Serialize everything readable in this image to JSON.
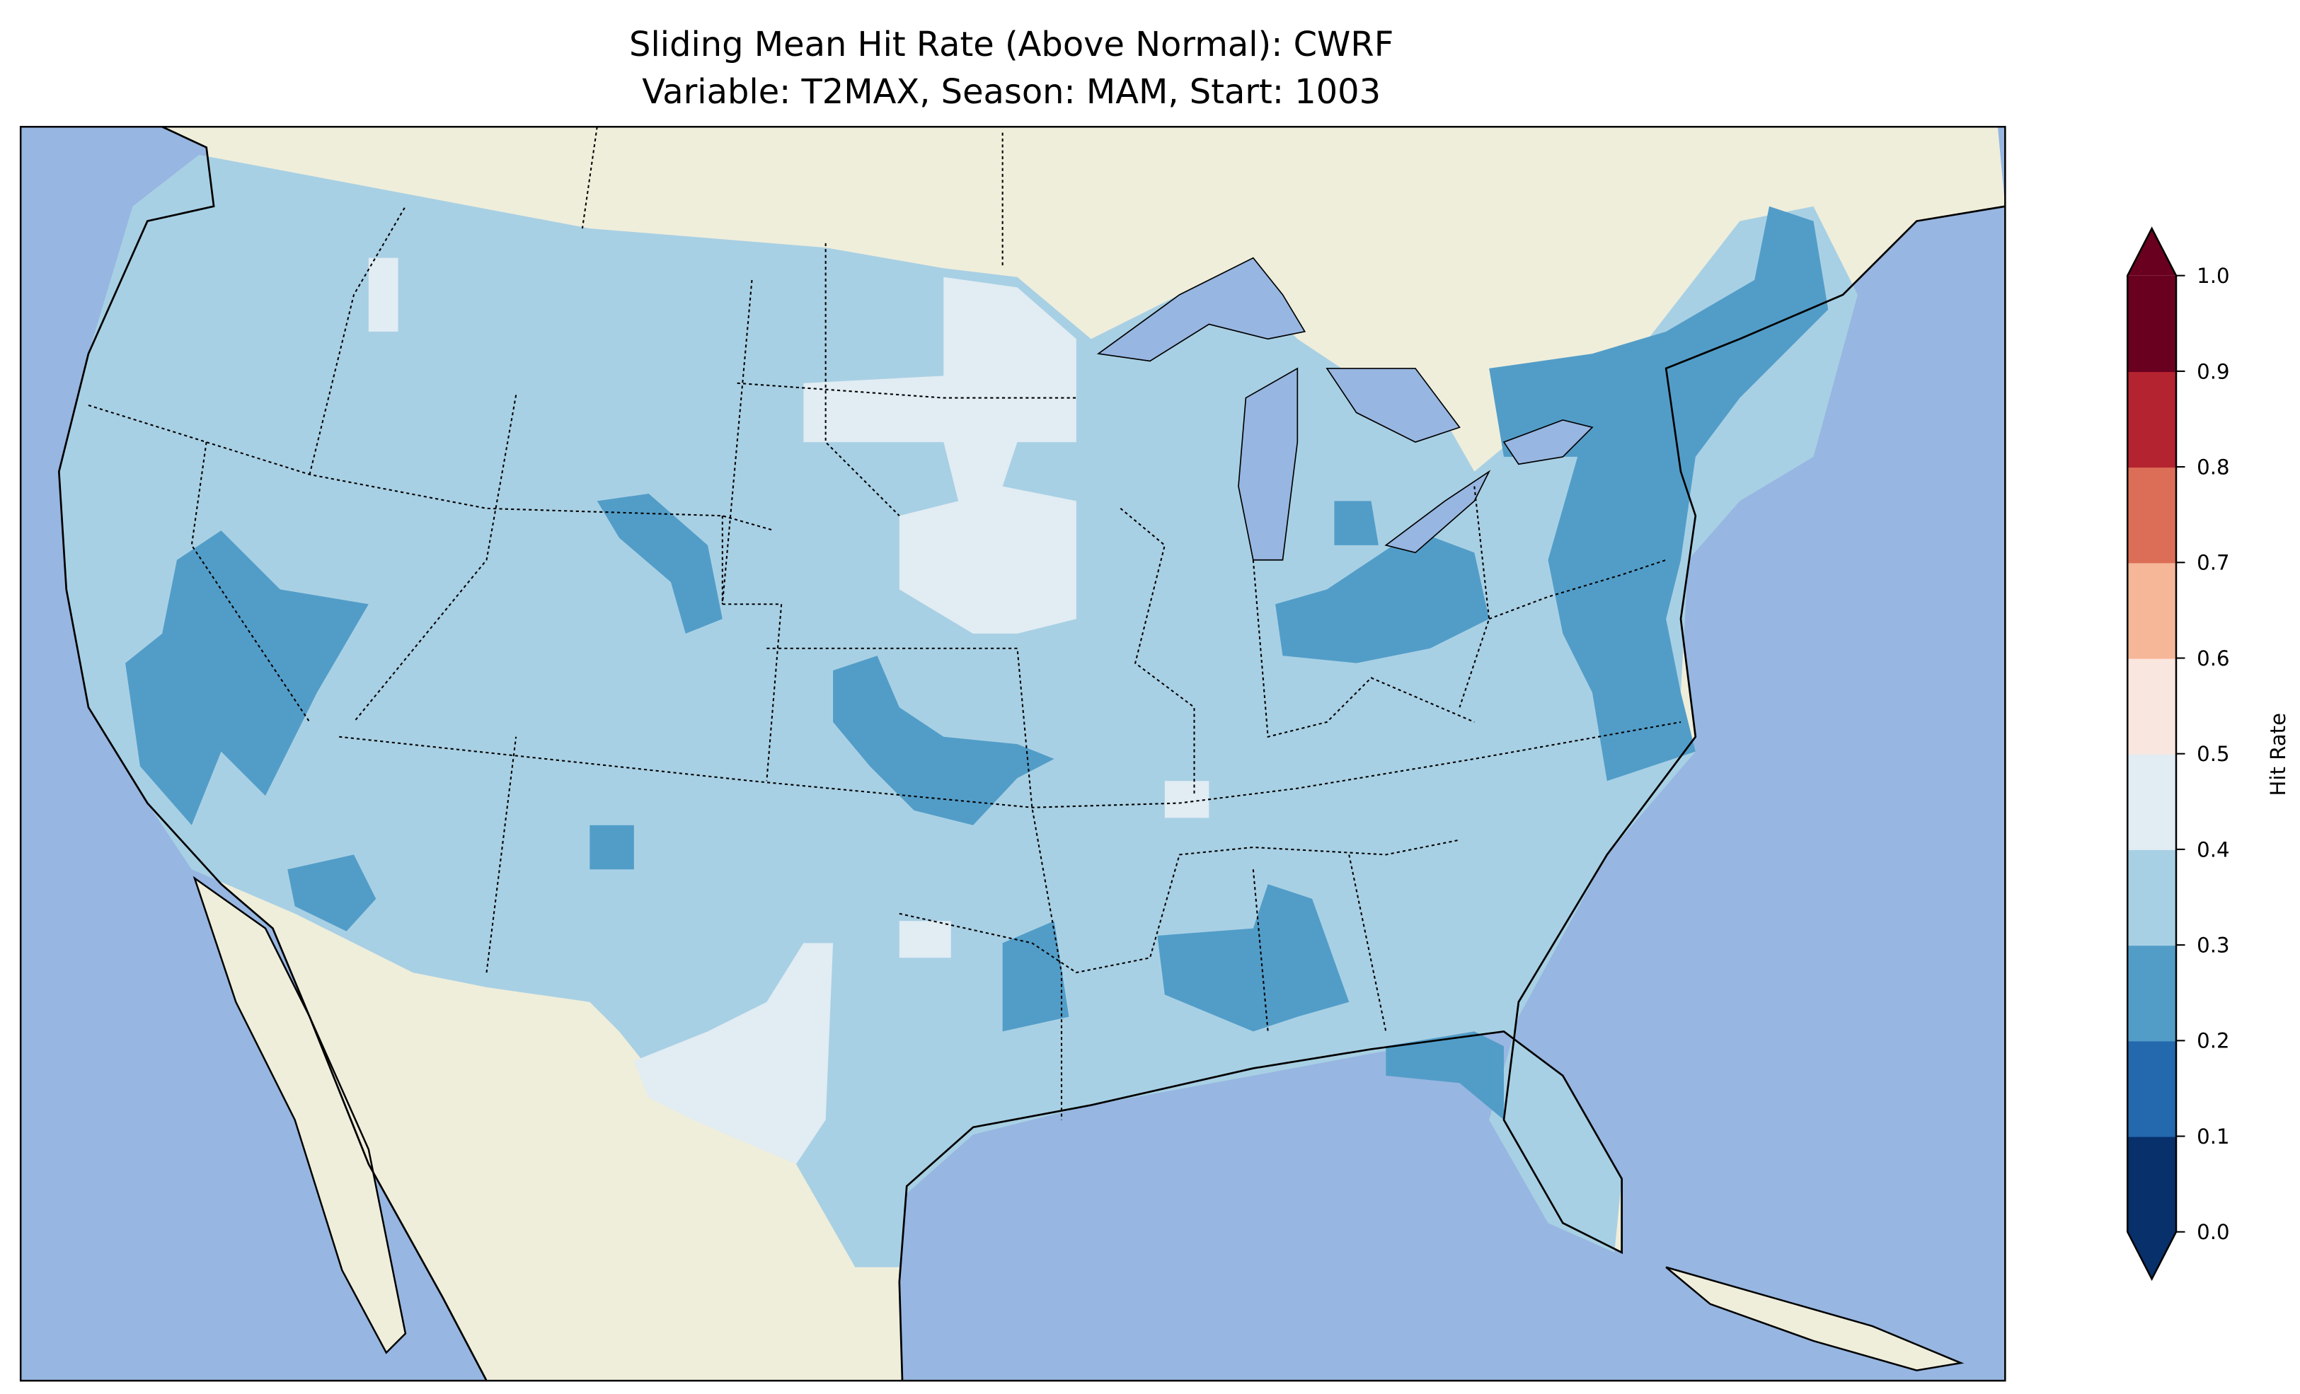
{
  "title": {
    "line1": "Sliding Mean Hit Rate (Above Normal): CWRF",
    "line2": "Variable: T2MAX, Season: MAM, Start: 1003"
  },
  "colors": {
    "ocean": "#97b6e1",
    "land": "#efeedb",
    "lake": "#97b6e1"
  },
  "chart_data": {
    "type": "heatmap",
    "title": "Sliding Mean Hit Rate (Above Normal): CWRF\nVariable: T2MAX, Season: MAM, Start: 1003",
    "region": "Contiguous United States",
    "colorbar": {
      "label": "Hit Rate",
      "ticks": [
        "0.0",
        "0.1",
        "0.2",
        "0.3",
        "0.4",
        "0.5",
        "0.6",
        "0.7",
        "0.8",
        "0.9",
        "1.0"
      ],
      "range": [
        0.0,
        1.0
      ],
      "extend": "both",
      "colors": [
        "#08306b",
        "#2468ad",
        "#529dc8",
        "#a8d0e4",
        "#e1ecf3",
        "#f9e6de",
        "#f6b798",
        "#dc6e58",
        "#b42330",
        "#6a0020"
      ]
    },
    "dominant_class": "0.3-0.4",
    "regions": [
      {
        "area": "Most of CONUS",
        "range": "0.3-0.4"
      },
      {
        "area": "Central/Southern California & Nevada",
        "range": "0.2-0.3"
      },
      {
        "area": "Kansas/Oklahoma",
        "range": "0.2-0.3"
      },
      {
        "area": "Ohio/Indiana",
        "range": "0.2-0.3"
      },
      {
        "area": "Northeast / Mid-Atlantic",
        "range": "0.2-0.3"
      },
      {
        "area": "Mississippi/Alabama",
        "range": "0.2-0.3"
      },
      {
        "area": "Dakotas/Nebraska",
        "range": "0.4-0.5"
      },
      {
        "area": "West Texas",
        "range": "0.4-0.5"
      }
    ]
  }
}
